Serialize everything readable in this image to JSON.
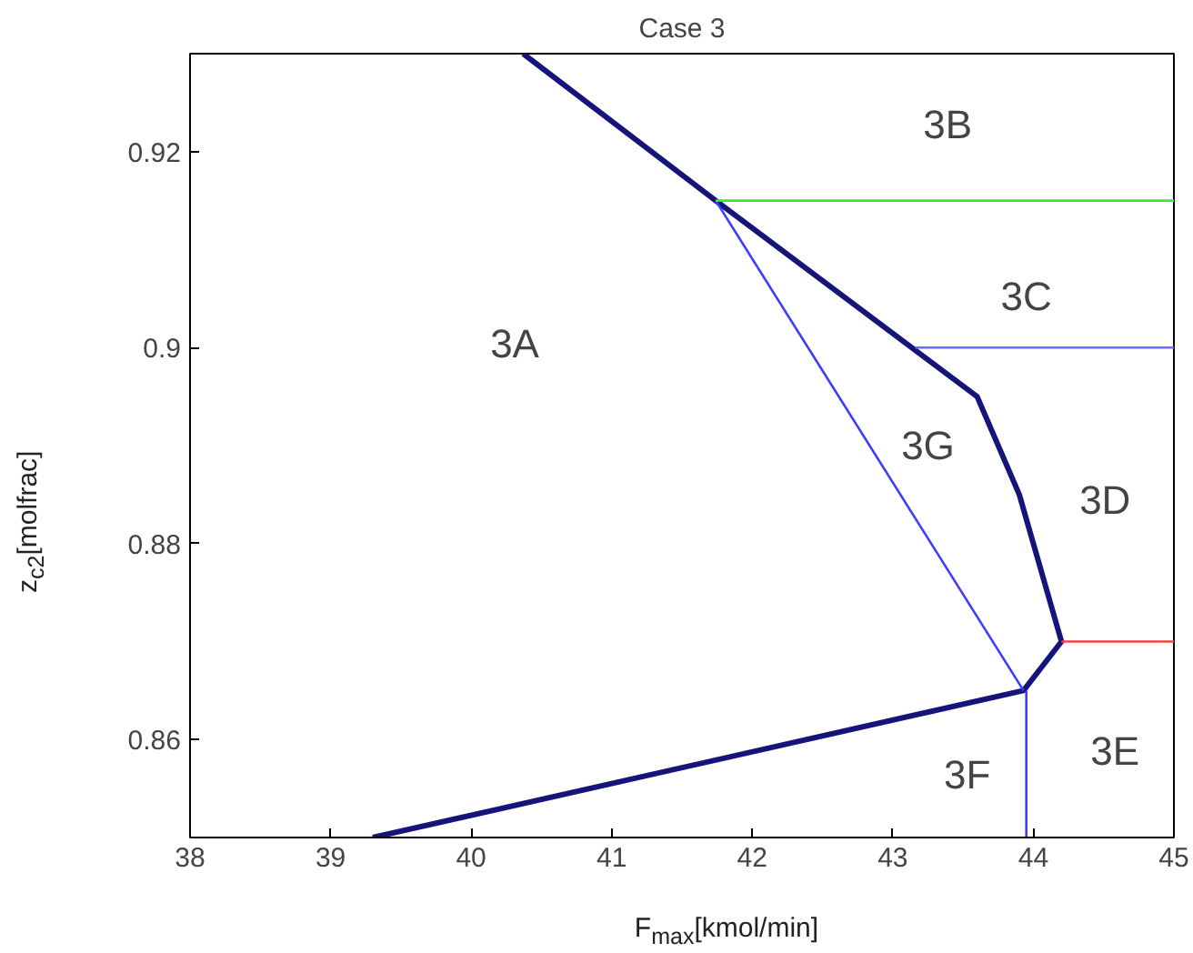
{
  "chart_data": {
    "type": "line",
    "title": "Case 3",
    "xlabel": "F$_{max}$[kmol/min]",
    "ylabel": "z$_{c2}$[molfrac]",
    "xlim": [
      38,
      45
    ],
    "ylim": [
      0.85,
      0.93
    ],
    "xticks": [
      38,
      39,
      40,
      41,
      42,
      43,
      44,
      45
    ],
    "yticks": [
      0.86,
      0.88,
      0.9,
      0.92
    ],
    "grid": false,
    "series": [
      {
        "color": "#14147a",
        "x": [
          40.37,
          41.74,
          43.6,
          43.9,
          44.2,
          43.93,
          39.3
        ],
        "values": [
          0.93,
          0.915,
          0.895,
          0.885,
          0.87,
          0.865,
          0.85
        ]
      },
      {
        "color": "#3c3cff",
        "x": [
          41.74,
          43.93
        ],
        "values": [
          0.915,
          0.865
        ]
      },
      {
        "color": "#3c3cff",
        "x": [
          43.95,
          43.95
        ],
        "values": [
          0.865,
          0.85
        ]
      },
      {
        "color": "#33ee33",
        "x": [
          41.74,
          45
        ],
        "values": [
          0.915,
          0.915
        ]
      },
      {
        "color": "#6a6aff",
        "x": [
          43.16,
          45
        ],
        "values": [
          0.9,
          0.9
        ]
      },
      {
        "color": "#ff4040",
        "x": [
          44.2,
          45
        ],
        "values": [
          0.87,
          0.87
        ]
      }
    ],
    "annotations": [
      "3A",
      "3B",
      "3C",
      "3G",
      "3D",
      "3F",
      "3E"
    ]
  }
}
